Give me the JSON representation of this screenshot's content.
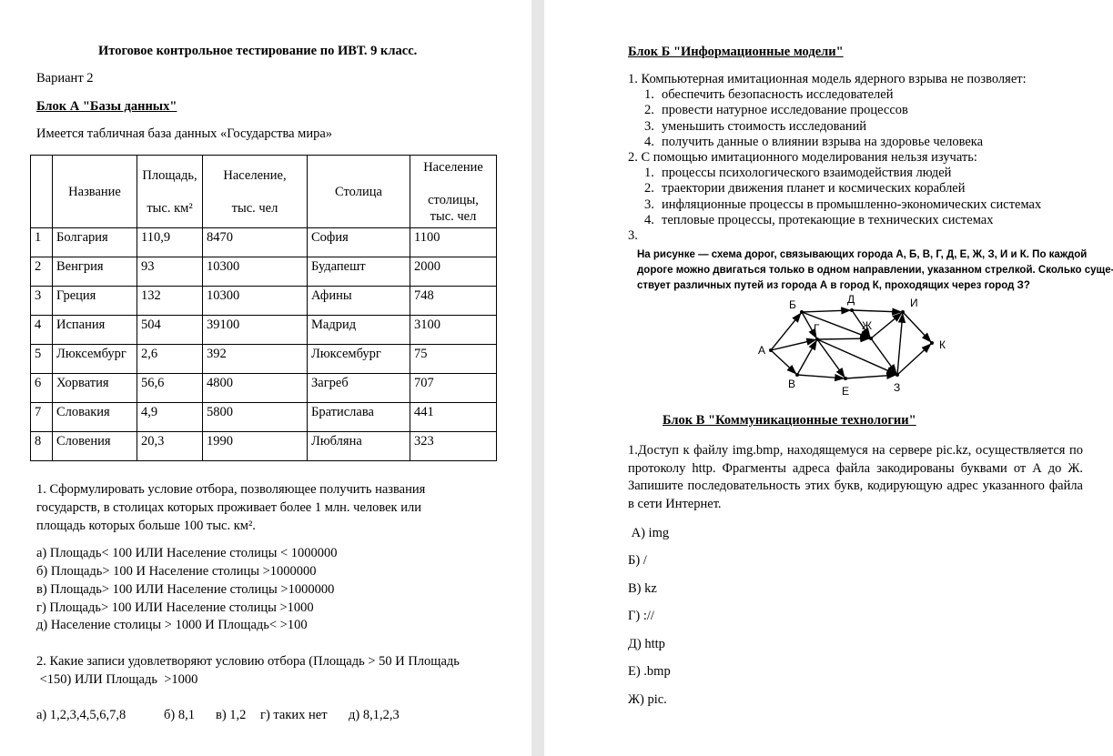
{
  "left_page": {
    "title": "Итоговое контрольное тестирование по ИВТ. 9 класс.",
    "variant": "Вариант 2",
    "block_a_title": "Блок А \"Базы данных\"",
    "intro": "Имеется табличная база данных «Государства мира»",
    "table": {
      "headers": [
        "",
        "Название",
        "Площадь,",
        "тыс. км²",
        "Население,",
        "тыс. чел",
        "Столица",
        "Население",
        "столицы,",
        "тыс. чел"
      ],
      "rows": [
        [
          "1",
          "Болгария",
          "110,9",
          "8470",
          "София",
          "1100"
        ],
        [
          "2",
          "Венгрия",
          "93",
          "10300",
          "Будапешт",
          "2000"
        ],
        [
          "3",
          "Греция",
          "132",
          "10300",
          "Афины",
          "748"
        ],
        [
          "4",
          "Испания",
          "504",
          "39100",
          "Мадрид",
          "3100"
        ],
        [
          "5",
          "Люксембург",
          "2,6",
          "392",
          "Люксембург",
          "75"
        ],
        [
          "6",
          "Хорватия",
          "56,6",
          "4800",
          "Загреб",
          "707"
        ],
        [
          "7",
          "Словакия",
          "4,9",
          "5800",
          "Братислава",
          "441"
        ],
        [
          "8",
          "Словения",
          "20,3",
          "1990",
          "Любляна",
          "323"
        ]
      ]
    },
    "q1": {
      "lines": [
        "1. Сформулировать условие отбора, позволяющее получить названия",
        "государств, в столицах которых проживает более 1 млн. человек или",
        "площадь которых больше 100 тыс. км²."
      ],
      "options": [
        "а) Площадь< 100 ИЛИ Население столицы < 1000000",
        "б) Площадь> 100 И Население столицы >1000000",
        "в) Площадь> 100 ИЛИ Население столицы >1000000",
        "г) Площадь> 100 ИЛИ Население столицы >1000",
        "д) Население столицы > 1000 И Площадь< >100"
      ]
    },
    "q2": {
      "lines": [
        "2. Какие записи удовлетворяют условию отбора (Площадь > 50 И Площадь",
        " <150) ИЛИ Площадь  >1000"
      ],
      "answers": [
        "а)  1,2,3,4,5,6,7,8",
        "б)  8,1",
        "в) 1,2",
        "г)  таких нет",
        "д)  8,1,2,3"
      ]
    }
  },
  "right_page": {
    "block_b_title": "Блок Б \"Информационные модели\"",
    "q1": {
      "text": "1. Компьютерная имитационная модель ядерного взрыва не позволяет:",
      "items": [
        "обеспечить безопасность исследователей",
        "провести натурное исследование процессов",
        "уменьшить стоимость исследований",
        "получить данные о влиянии взрыва на здоровье человека"
      ]
    },
    "q2": {
      "text": "2. С помощью имитационного моделирования нельзя изучать:",
      "items": [
        "процессы психологического взаимодействия людей",
        "траектории движения планет и космических кораблей",
        "инфляционные процессы в промышленно-экономических системах",
        "тепловые процессы, протекающие в технических системах"
      ]
    },
    "q3": {
      "number": "3.",
      "text_lines": [
        "На рисунке — схема дорог, связывающих города А, Б, В, Г, Д, Е, Ж, З, И и К. По каждой",
        "дороге можно двигаться только в одном направлении, указанном стрелкой. Сколько суще-",
        "ствует различных путей из города А в город К, проходящих через город З?"
      ],
      "nodes": [
        "А",
        "Б",
        "В",
        "Г",
        "Д",
        "Е",
        "Ж",
        "З",
        "И",
        "К"
      ],
      "edges": [
        [
          "А",
          "Б"
        ],
        [
          "А",
          "Г"
        ],
        [
          "А",
          "В"
        ],
        [
          "Б",
          "Д"
        ],
        [
          "Б",
          "Г"
        ],
        [
          "Б",
          "Ж"
        ],
        [
          "Д",
          "И"
        ],
        [
          "Д",
          "Ж"
        ],
        [
          "Г",
          "Ж"
        ],
        [
          "Г",
          "Е"
        ],
        [
          "Г",
          "З"
        ],
        [
          "В",
          "Г"
        ],
        [
          "В",
          "Е"
        ],
        [
          "Е",
          "З"
        ],
        [
          "Ж",
          "И"
        ],
        [
          "Ж",
          "З"
        ],
        [
          "З",
          "И"
        ],
        [
          "З",
          "К"
        ],
        [
          "И",
          "К"
        ]
      ]
    },
    "block_v_title": "Блок В \"Коммуникационные технологии\"",
    "block_v_text": "1.Доступ к файлу img.bmp, находящемуся на сервере pic.kz, осуществляется по протоколу http. Фрагменты адреса файла закодированы буквами от А до Ж. Запишите последовательность этих букв, кодирующую адрес указанного файла в сети Интернет.",
    "options": [
      " А) img",
      "Б) /",
      "В) kz",
      "Г) ://",
      "Д) http",
      "Е) .bmp",
      "Ж) pic."
    ]
  }
}
